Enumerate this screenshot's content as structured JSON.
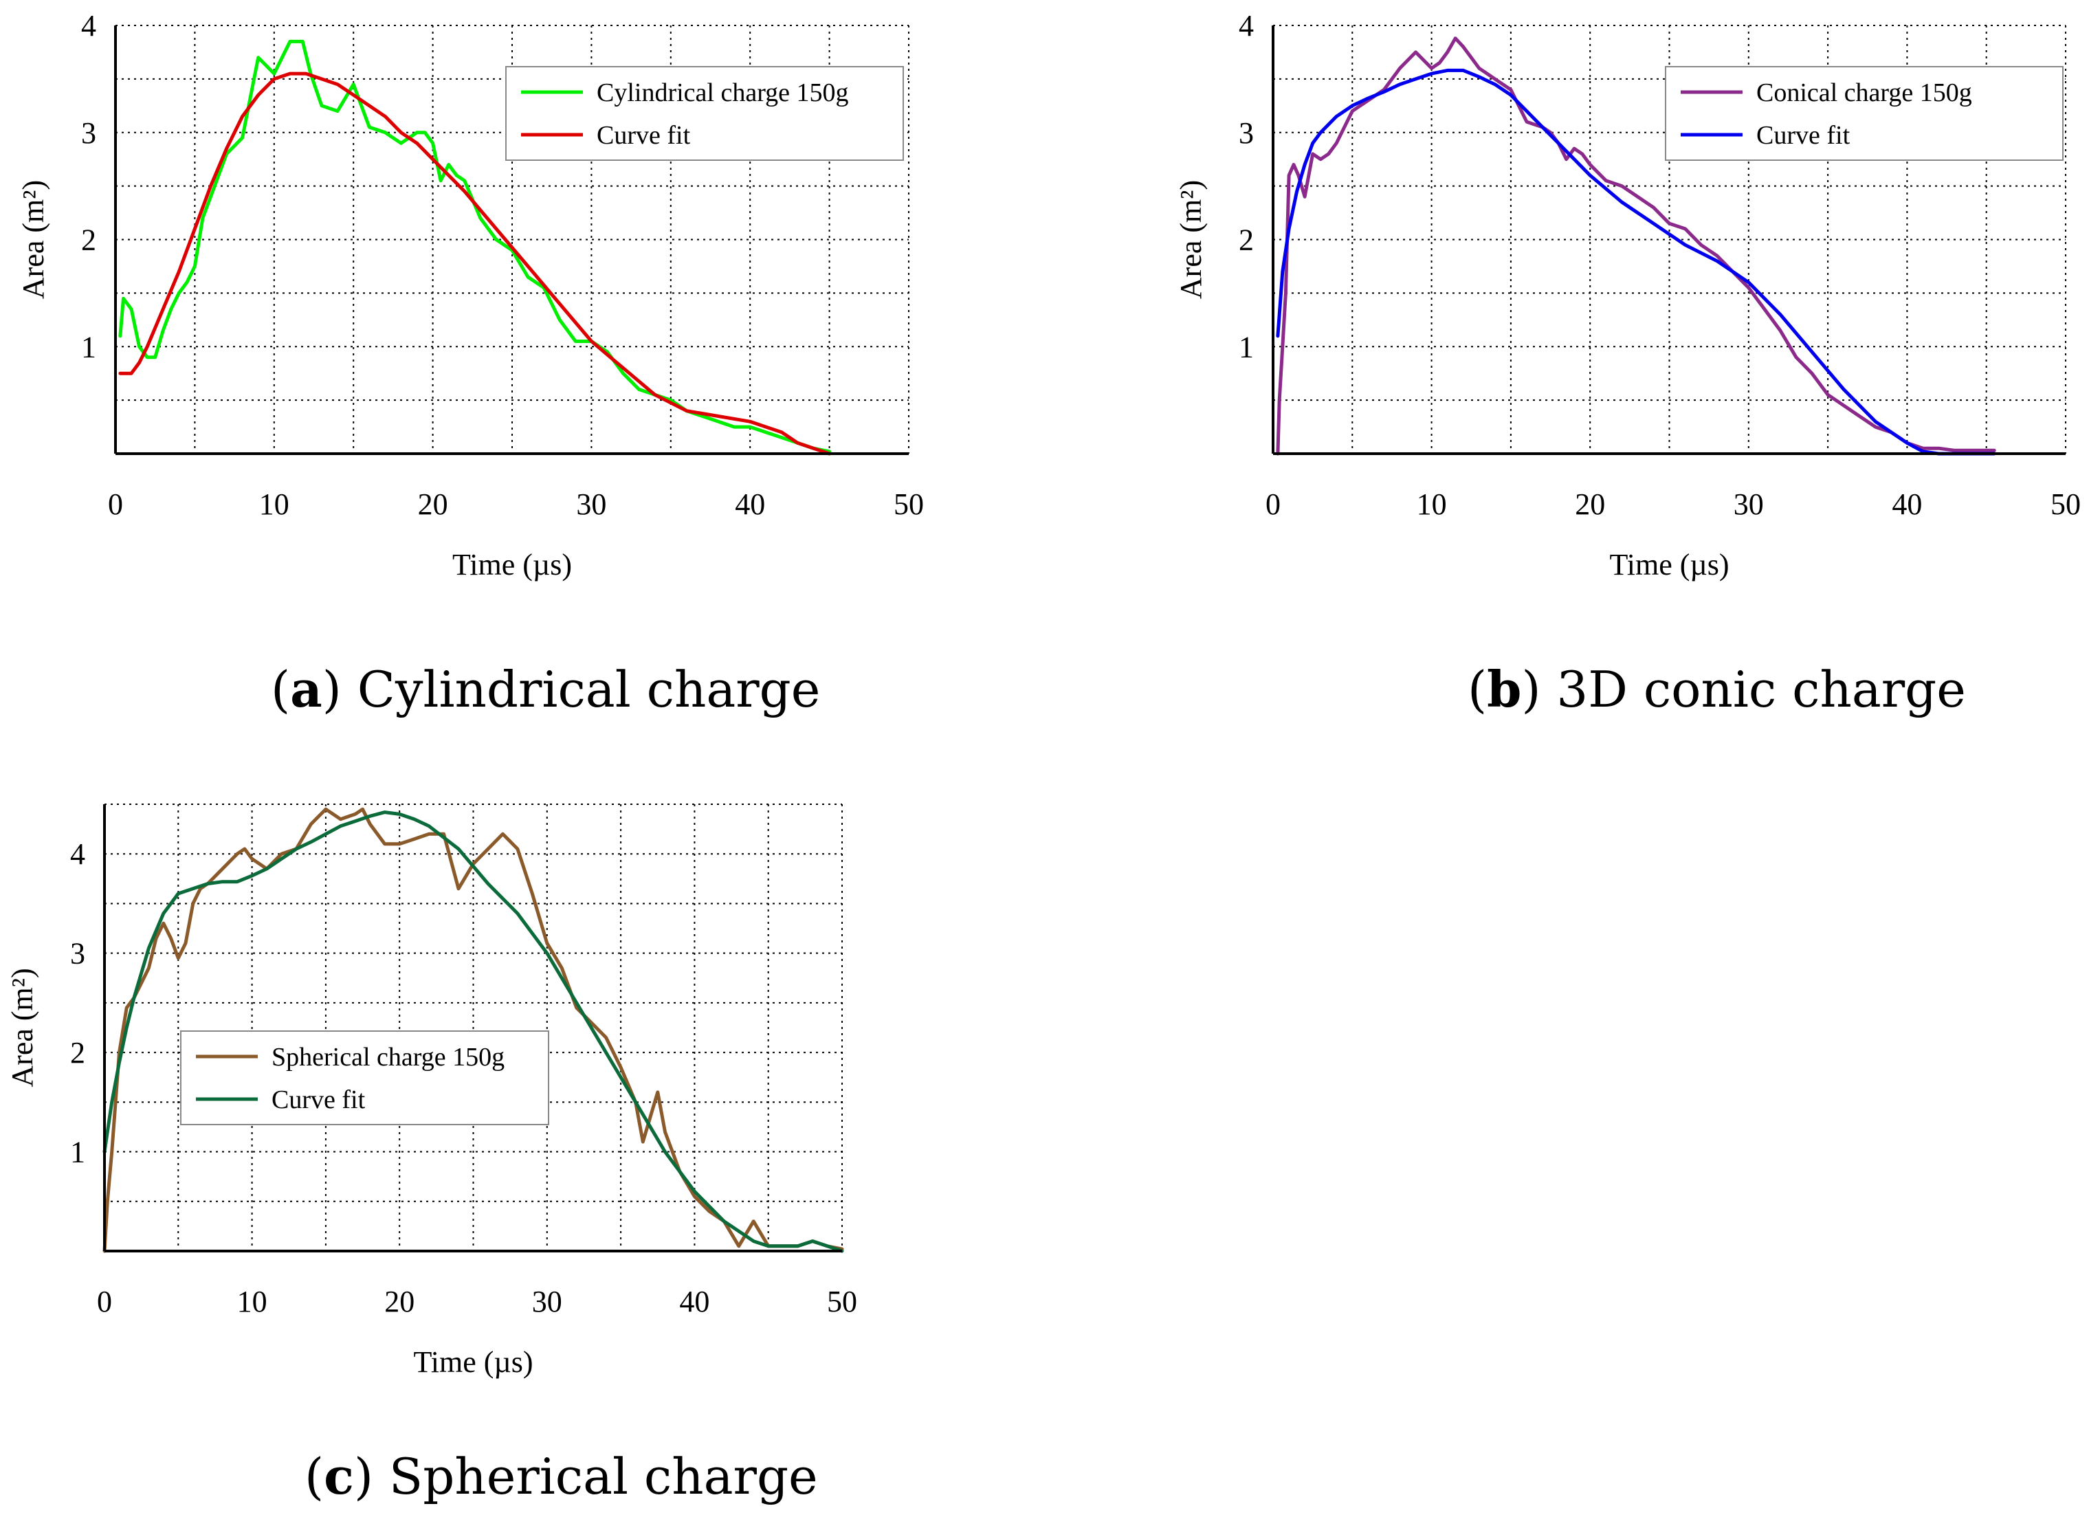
{
  "chart_data": [
    {
      "type": "line",
      "id": "a",
      "caption_letter": "a",
      "caption_text": "Cylindrical charge",
      "xlabel": "Time (µs)",
      "ylabel": "Area (m²)",
      "xlim": [
        0,
        50
      ],
      "ylim": [
        0,
        4
      ],
      "xticks": [
        0,
        10,
        20,
        30,
        40,
        50
      ],
      "yticks": [
        1,
        2,
        3,
        4
      ],
      "xgrid": [
        5,
        10,
        15,
        20,
        25,
        30,
        35,
        40,
        45,
        50
      ],
      "ygrid": [
        0.5,
        1,
        1.5,
        2,
        2.5,
        3,
        3.5,
        4
      ],
      "grid": true,
      "legend": "top-right",
      "series": [
        {
          "name": "Cylindrical charge 150g",
          "color": "#00ee00",
          "x": [
            0.3,
            0.5,
            1.0,
            1.5,
            2.0,
            2.5,
            3.0,
            3.5,
            4.0,
            4.5,
            5.0,
            5.5,
            6.0,
            7.0,
            8.0,
            9.0,
            10.0,
            11.0,
            11.8,
            12.3,
            13.0,
            14.0,
            15.0,
            16.0,
            17.0,
            18.0,
            18.5,
            19.0,
            19.5,
            20.0,
            20.5,
            21.0,
            21.5,
            22.0,
            23.0,
            24.0,
            25.0,
            26.0,
            27.0,
            28.0,
            29.0,
            30.0,
            31.0,
            32.0,
            33.0,
            34.0,
            35.0,
            36.0,
            37.0,
            38.0,
            39.0,
            40.0,
            41.0,
            42.0,
            43.0,
            44.0,
            45.0
          ],
          "y": [
            1.1,
            1.45,
            1.35,
            1.0,
            0.9,
            0.9,
            1.15,
            1.35,
            1.5,
            1.6,
            1.75,
            2.2,
            2.4,
            2.8,
            2.95,
            3.7,
            3.55,
            3.85,
            3.85,
            3.55,
            3.25,
            3.2,
            3.45,
            3.05,
            3.0,
            2.9,
            2.95,
            3.0,
            3.0,
            2.9,
            2.55,
            2.7,
            2.6,
            2.55,
            2.2,
            2.0,
            1.9,
            1.65,
            1.55,
            1.25,
            1.05,
            1.05,
            0.95,
            0.75,
            0.6,
            0.55,
            0.5,
            0.4,
            0.35,
            0.3,
            0.25,
            0.25,
            0.2,
            0.15,
            0.1,
            0.05,
            0.02
          ]
        },
        {
          "name": "Curve fit",
          "color": "#dd0000",
          "x": [
            0.3,
            1.0,
            1.5,
            2.0,
            3.0,
            4.0,
            5.0,
            6.0,
            7.0,
            8.0,
            9.0,
            10.0,
            11.0,
            12.0,
            13.0,
            14.0,
            15.0,
            16.0,
            17.0,
            18.0,
            19.0,
            20.0,
            22.0,
            24.0,
            26.0,
            28.0,
            30.0,
            32.0,
            34.0,
            36.0,
            38.0,
            40.0,
            41.0,
            42.0,
            43.0,
            44.0,
            45.0
          ],
          "y": [
            0.75,
            0.75,
            0.85,
            1.0,
            1.35,
            1.7,
            2.1,
            2.5,
            2.85,
            3.15,
            3.35,
            3.5,
            3.55,
            3.55,
            3.5,
            3.45,
            3.35,
            3.25,
            3.15,
            3.0,
            2.9,
            2.75,
            2.45,
            2.1,
            1.75,
            1.4,
            1.05,
            0.8,
            0.55,
            0.4,
            0.35,
            0.3,
            0.25,
            0.2,
            0.1,
            0.05,
            0.0
          ]
        }
      ]
    },
    {
      "type": "line",
      "id": "b",
      "caption_letter": "b",
      "caption_text": "3D conic charge",
      "xlabel": "Time (µs)",
      "ylabel": "Area (m²)",
      "xlim": [
        0,
        50
      ],
      "ylim": [
        0,
        4
      ],
      "xticks": [
        0,
        10,
        20,
        30,
        40,
        50
      ],
      "yticks": [
        1,
        2,
        3,
        4
      ],
      "xgrid": [
        5,
        10,
        15,
        20,
        25,
        30,
        35,
        40,
        45,
        50
      ],
      "ygrid": [
        0.5,
        1,
        1.5,
        2,
        2.5,
        3,
        3.5,
        4
      ],
      "grid": true,
      "legend": "top-right",
      "series": [
        {
          "name": "Conical charge 150g",
          "color": "#8b2a8b",
          "x": [
            0.3,
            0.4,
            0.6,
            0.8,
            1.0,
            1.3,
            1.6,
            2.0,
            2.5,
            3.0,
            3.5,
            4.0,
            5.0,
            6.0,
            7.0,
            8.0,
            9.0,
            10.0,
            10.5,
            11.0,
            11.5,
            12.0,
            12.5,
            13.0,
            14.0,
            15.0,
            16.0,
            17.0,
            17.5,
            18.0,
            18.5,
            19.0,
            19.5,
            20.0,
            21.0,
            22.0,
            23.0,
            24.0,
            25.0,
            26.0,
            27.0,
            28.0,
            29.0,
            30.0,
            31.0,
            32.0,
            33.0,
            34.0,
            35.0,
            36.0,
            37.0,
            38.0,
            39.0,
            40.0,
            41.0,
            42.0,
            43.0,
            44.0,
            45.0,
            45.5
          ],
          "y": [
            0.0,
            0.5,
            1.0,
            1.5,
            2.6,
            2.7,
            2.6,
            2.4,
            2.8,
            2.75,
            2.8,
            2.9,
            3.2,
            3.3,
            3.4,
            3.6,
            3.75,
            3.6,
            3.65,
            3.75,
            3.88,
            3.8,
            3.7,
            3.6,
            3.5,
            3.4,
            3.1,
            3.05,
            3.0,
            2.9,
            2.75,
            2.85,
            2.8,
            2.7,
            2.55,
            2.5,
            2.4,
            2.3,
            2.15,
            2.1,
            1.95,
            1.85,
            1.7,
            1.55,
            1.35,
            1.15,
            0.9,
            0.75,
            0.55,
            0.45,
            0.35,
            0.25,
            0.2,
            0.1,
            0.05,
            0.05,
            0.03,
            0.03,
            0.03,
            0.03
          ]
        },
        {
          "name": "Curve fit",
          "color": "#0000ee",
          "x": [
            0.3,
            0.6,
            1.0,
            1.5,
            2.0,
            2.5,
            3.0,
            4.0,
            5.0,
            6.0,
            7.0,
            8.0,
            9.0,
            10.0,
            11.0,
            12.0,
            13.0,
            14.0,
            15.0,
            16.0,
            17.0,
            18.0,
            20.0,
            22.0,
            24.0,
            26.0,
            28.0,
            30.0,
            32.0,
            34.0,
            36.0,
            38.0,
            40.0,
            41.0,
            42.0,
            43.0,
            44.0,
            45.0,
            45.5
          ],
          "y": [
            1.1,
            1.7,
            2.1,
            2.45,
            2.7,
            2.9,
            3.0,
            3.15,
            3.25,
            3.32,
            3.38,
            3.45,
            3.5,
            3.55,
            3.58,
            3.58,
            3.52,
            3.45,
            3.35,
            3.2,
            3.05,
            2.9,
            2.6,
            2.35,
            2.15,
            1.95,
            1.8,
            1.6,
            1.3,
            0.95,
            0.6,
            0.3,
            0.1,
            0.02,
            0.0,
            0.0,
            0.0,
            0.0,
            0.0
          ]
        }
      ]
    },
    {
      "type": "line",
      "id": "c",
      "caption_letter": "c",
      "caption_text": "Spherical charge",
      "xlabel": "Time (µs)",
      "ylabel": "Area (m²)",
      "xlim": [
        0,
        50
      ],
      "ylim": [
        0,
        4.5
      ],
      "xticks": [
        0,
        10,
        20,
        30,
        40,
        50
      ],
      "yticks": [
        1,
        2,
        3,
        4
      ],
      "xgrid": [
        5,
        10,
        15,
        20,
        25,
        30,
        35,
        40,
        45,
        50
      ],
      "ygrid": [
        0.5,
        1,
        1.5,
        2,
        2.5,
        3,
        3.5,
        4,
        4.5
      ],
      "grid": true,
      "legend": "center-left",
      "series": [
        {
          "name": "Spherical charge 150g",
          "color": "#8b5a2b",
          "x": [
            0.0,
            0.2,
            0.5,
            1.0,
            1.5,
            2.0,
            2.5,
            3.0,
            3.5,
            4.0,
            4.5,
            5.0,
            5.5,
            6.0,
            6.5,
            7.0,
            8.0,
            9.0,
            9.5,
            10.0,
            11.0,
            12.0,
            13.0,
            14.0,
            15.0,
            16.0,
            17.0,
            17.5,
            18.0,
            19.0,
            20.0,
            21.0,
            22.0,
            23.0,
            24.0,
            25.0,
            26.0,
            27.0,
            28.0,
            29.0,
            30.0,
            31.0,
            32.0,
            33.0,
            34.0,
            35.0,
            36.0,
            36.5,
            37.0,
            37.5,
            38.0,
            39.0,
            40.0,
            41.0,
            42.0,
            43.0,
            44.0,
            45.0,
            46.0,
            47.0,
            48.0,
            49.0,
            50.0
          ],
          "y": [
            0.0,
            0.5,
            1.0,
            2.0,
            2.45,
            2.55,
            2.7,
            2.85,
            3.15,
            3.3,
            3.15,
            2.95,
            3.1,
            3.5,
            3.65,
            3.7,
            3.85,
            4.0,
            4.05,
            3.95,
            3.85,
            4.0,
            4.05,
            4.3,
            4.45,
            4.35,
            4.4,
            4.45,
            4.3,
            4.1,
            4.1,
            4.15,
            4.2,
            4.2,
            3.65,
            3.9,
            4.05,
            4.2,
            4.05,
            3.6,
            3.1,
            2.85,
            2.45,
            2.3,
            2.15,
            1.85,
            1.5,
            1.1,
            1.35,
            1.6,
            1.2,
            0.8,
            0.55,
            0.4,
            0.3,
            0.05,
            0.3,
            0.05,
            0.05,
            0.05,
            0.1,
            0.05,
            0.02
          ]
        },
        {
          "name": "Curve fit",
          "color": "#0b6b3b",
          "x": [
            0.0,
            0.5,
            1.0,
            1.5,
            2.0,
            3.0,
            4.0,
            5.0,
            6.0,
            7.0,
            8.0,
            9.0,
            10.0,
            11.0,
            12.0,
            13.0,
            14.0,
            15.0,
            16.0,
            17.0,
            18.0,
            19.0,
            20.0,
            21.0,
            22.0,
            24.0,
            26.0,
            28.0,
            30.0,
            32.0,
            34.0,
            36.0,
            38.0,
            40.0,
            42.0,
            44.0,
            45.0,
            46.0,
            47.0,
            48.0,
            49.0,
            50.0
          ],
          "y": [
            1.0,
            1.5,
            1.9,
            2.25,
            2.55,
            3.05,
            3.4,
            3.6,
            3.65,
            3.7,
            3.72,
            3.72,
            3.78,
            3.85,
            3.95,
            4.05,
            4.12,
            4.2,
            4.28,
            4.33,
            4.38,
            4.42,
            4.4,
            4.35,
            4.28,
            4.05,
            3.7,
            3.4,
            3.0,
            2.5,
            2.0,
            1.5,
            1.0,
            0.6,
            0.3,
            0.1,
            0.05,
            0.05,
            0.05,
            0.1,
            0.05,
            0.0
          ]
        }
      ]
    }
  ]
}
